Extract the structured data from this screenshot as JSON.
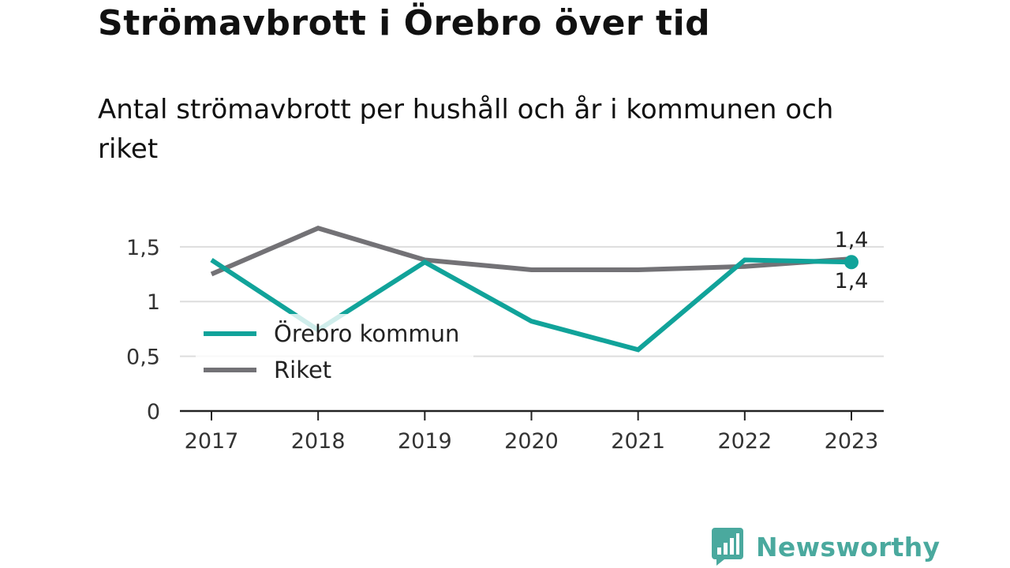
{
  "header": {
    "title": "Strömavbrott i Örebro över tid",
    "subtitle": "Antal strömavbrott per hushåll och år i kommunen och riket"
  },
  "brand": {
    "name": "Newsworthy",
    "icon": "bar-chart-speech-bubble-icon",
    "color": "#4aa99e"
  },
  "chart_data": {
    "type": "line",
    "title": "",
    "xlabel": "",
    "ylabel": "",
    "categories": [
      "2017",
      "2018",
      "2019",
      "2020",
      "2021",
      "2022",
      "2023"
    ],
    "ylim": [
      0,
      1.65
    ],
    "yticks": [
      {
        "value": 0,
        "label": "0"
      },
      {
        "value": 0.5,
        "label": "0,5"
      },
      {
        "value": 1,
        "label": "1"
      },
      {
        "value": 1.5,
        "label": "1,5"
      }
    ],
    "grid": true,
    "legend_position": "bottom-left",
    "series": [
      {
        "name": "Örebro kommun",
        "color": "#11a39a",
        "values": [
          1.38,
          0.74,
          1.36,
          0.82,
          0.56,
          1.38,
          1.36
        ],
        "end_label": "1,4"
      },
      {
        "name": "Riket",
        "color": "#737276",
        "values": [
          1.25,
          1.67,
          1.38,
          1.29,
          1.29,
          1.32,
          1.39
        ],
        "end_label": "1,4"
      }
    ]
  }
}
